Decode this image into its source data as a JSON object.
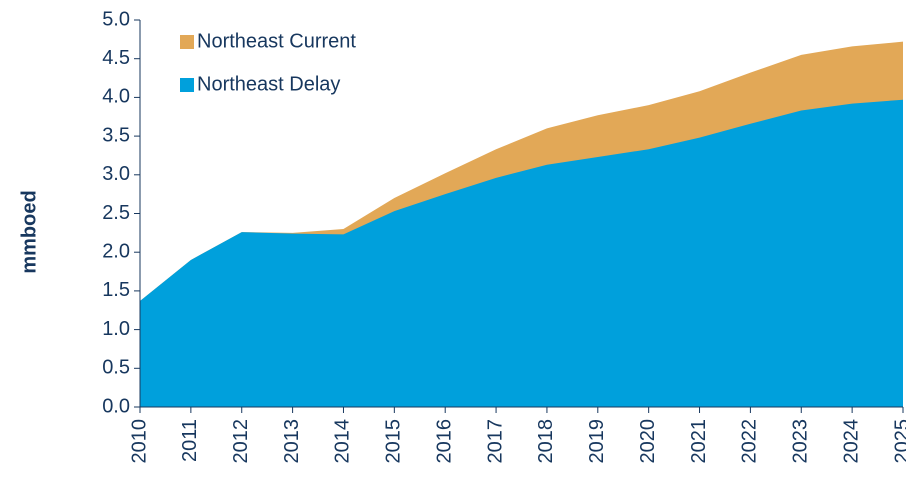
{
  "chart_data": {
    "type": "area",
    "ylabel": "mmboed",
    "categories": [
      "2010",
      "2011",
      "2012",
      "2013",
      "2014",
      "2015",
      "2016",
      "2017",
      "2018",
      "2019",
      "2020",
      "2021",
      "2022",
      "2023",
      "2024",
      "2025"
    ],
    "series": [
      {
        "name": "Northeast Current",
        "color": "#e2a857",
        "values": [
          1.37,
          1.9,
          2.26,
          2.25,
          2.3,
          2.7,
          3.02,
          3.33,
          3.6,
          3.77,
          3.9,
          4.08,
          4.32,
          4.55,
          4.66,
          4.72
        ]
      },
      {
        "name": "Northeast Delay",
        "color": "#00a0dc",
        "values": [
          1.37,
          1.9,
          2.26,
          2.24,
          2.23,
          2.53,
          2.75,
          2.96,
          3.13,
          3.23,
          3.33,
          3.48,
          3.66,
          3.83,
          3.92,
          3.97
        ]
      }
    ],
    "ylim": [
      0,
      5
    ],
    "yticks": [
      {
        "value": 0,
        "label": "0.0"
      },
      0.5,
      {
        "value": 1,
        "label": "1.0"
      },
      1.5,
      {
        "value": 2,
        "label": "2.0"
      },
      2.5,
      {
        "value": 3,
        "label": "3.0"
      },
      3.5,
      {
        "value": 4,
        "label": "4.0"
      },
      4.5,
      {
        "value": 5,
        "label": "5.0"
      }
    ],
    "legend": "upper-left"
  }
}
